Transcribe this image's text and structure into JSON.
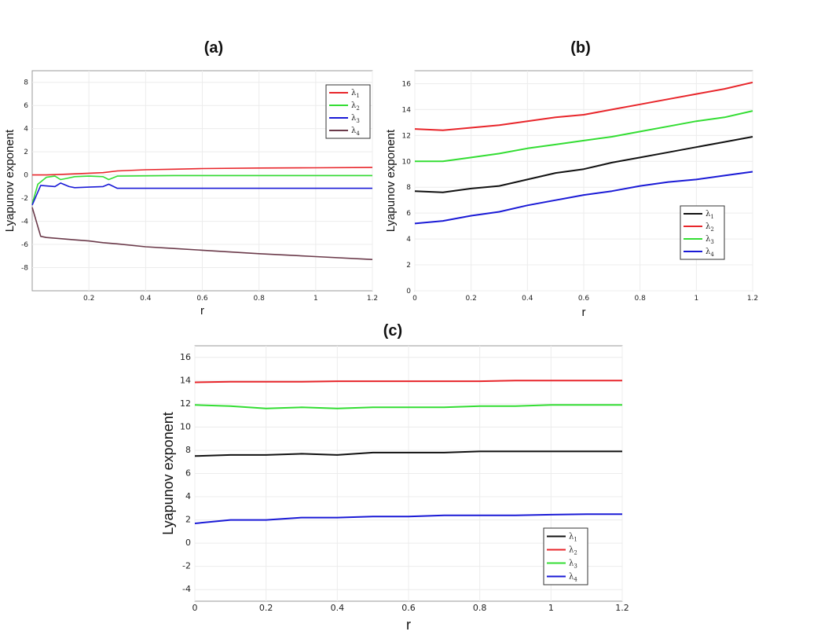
{
  "panels": {
    "a": "(a)",
    "b": "(b)",
    "c": "(c)"
  },
  "chart_data": [
    {
      "type": "line",
      "panel": "(a)",
      "xlabel": "r",
      "ylabel": "Lyapunov exponent",
      "xlim": [
        0,
        1.2
      ],
      "ylim": [
        -10,
        9
      ],
      "xticks": [
        "0.2",
        "0.4",
        "0.6",
        "0.8",
        "1",
        "1.2"
      ],
      "yticks": [
        "-8",
        "-6",
        "-4",
        "-2",
        "0",
        "2",
        "4",
        "6",
        "8"
      ],
      "legend_position": "top-right",
      "grid": true,
      "series": [
        {
          "name": "λ1",
          "color": "#e8262b",
          "x": [
            0,
            0.05,
            0.1,
            0.15,
            0.2,
            0.25,
            0.3,
            0.4,
            0.5,
            0.6,
            0.8,
            1.0,
            1.2
          ],
          "y": [
            0,
            0,
            0.05,
            0.1,
            0.15,
            0.2,
            0.35,
            0.45,
            0.5,
            0.55,
            0.6,
            0.62,
            0.65
          ]
        },
        {
          "name": "λ2",
          "color": "#33dd33",
          "x": [
            0,
            0.02,
            0.05,
            0.08,
            0.1,
            0.12,
            0.15,
            0.2,
            0.25,
            0.27,
            0.3,
            0.5,
            0.8,
            1.0,
            1.2
          ],
          "y": [
            -2.5,
            -0.8,
            -0.2,
            -0.1,
            -0.4,
            -0.3,
            -0.15,
            -0.1,
            -0.15,
            -0.4,
            -0.1,
            -0.05,
            -0.05,
            -0.05,
            -0.05
          ]
        },
        {
          "name": "λ3",
          "color": "#1a1ad6",
          "x": [
            0,
            0.03,
            0.08,
            0.1,
            0.13,
            0.15,
            0.2,
            0.25,
            0.27,
            0.3,
            0.5,
            0.8,
            1.0,
            1.2
          ],
          "y": [
            -2.6,
            -0.9,
            -1.0,
            -0.7,
            -1.0,
            -1.1,
            -1.05,
            -1.0,
            -0.8,
            -1.15,
            -1.15,
            -1.15,
            -1.15,
            -1.15
          ]
        },
        {
          "name": "λ4",
          "color": "#6b3a4a",
          "x": [
            0,
            0.03,
            0.05,
            0.1,
            0.15,
            0.2,
            0.25,
            0.3,
            0.4,
            0.5,
            0.6,
            0.8,
            1.0,
            1.2
          ],
          "y": [
            -2.8,
            -5.3,
            -5.4,
            -5.5,
            -5.6,
            -5.7,
            -5.85,
            -5.95,
            -6.2,
            -6.35,
            -6.5,
            -6.8,
            -7.05,
            -7.3
          ]
        }
      ]
    },
    {
      "type": "line",
      "panel": "(b)",
      "xlabel": "r",
      "ylabel": "Lyapunov exponent",
      "xlim": [
        0,
        1.2
      ],
      "ylim": [
        0,
        17
      ],
      "xticks": [
        "0",
        "0.2",
        "0.4",
        "0.6",
        "0.8",
        "1",
        "1.2"
      ],
      "yticks": [
        "0",
        "2",
        "4",
        "6",
        "8",
        "10",
        "12",
        "14",
        "16"
      ],
      "legend_position": "lower-right",
      "grid": true,
      "series": [
        {
          "name": "λ1",
          "color": "#111111",
          "x": [
            0,
            0.1,
            0.2,
            0.3,
            0.4,
            0.5,
            0.6,
            0.7,
            0.8,
            0.9,
            1.0,
            1.1,
            1.2
          ],
          "y": [
            7.7,
            7.6,
            7.9,
            8.1,
            8.6,
            9.1,
            9.4,
            9.9,
            10.3,
            10.7,
            11.1,
            11.5,
            11.9
          ]
        },
        {
          "name": "λ2",
          "color": "#e8262b",
          "x": [
            0,
            0.1,
            0.2,
            0.3,
            0.4,
            0.5,
            0.6,
            0.7,
            0.8,
            0.9,
            1.0,
            1.1,
            1.2
          ],
          "y": [
            12.5,
            12.4,
            12.6,
            12.8,
            13.1,
            13.4,
            13.6,
            14.0,
            14.4,
            14.8,
            15.2,
            15.6,
            16.1
          ]
        },
        {
          "name": "λ3",
          "color": "#33dd33",
          "x": [
            0,
            0.1,
            0.2,
            0.3,
            0.4,
            0.5,
            0.6,
            0.7,
            0.8,
            0.9,
            1.0,
            1.1,
            1.2
          ],
          "y": [
            10.0,
            10.0,
            10.3,
            10.6,
            11.0,
            11.3,
            11.6,
            11.9,
            12.3,
            12.7,
            13.1,
            13.4,
            13.9
          ]
        },
        {
          "name": "λ4",
          "color": "#1a1ad6",
          "x": [
            0,
            0.1,
            0.2,
            0.3,
            0.4,
            0.5,
            0.6,
            0.7,
            0.8,
            0.9,
            1.0,
            1.1,
            1.2
          ],
          "y": [
            5.2,
            5.4,
            5.8,
            6.1,
            6.6,
            7.0,
            7.4,
            7.7,
            8.1,
            8.4,
            8.6,
            8.9,
            9.2
          ]
        }
      ]
    },
    {
      "type": "line",
      "panel": "(c)",
      "xlabel": "r",
      "ylabel": "Lyapunov exponent",
      "xlim": [
        0,
        1.2
      ],
      "ylim": [
        -5,
        17
      ],
      "xticks": [
        "0",
        "0.2",
        "0.4",
        "0.6",
        "0.8",
        "1",
        "1.2"
      ],
      "yticks": [
        "-4",
        "-2",
        "0",
        "2",
        "4",
        "6",
        "8",
        "10",
        "12",
        "14",
        "16"
      ],
      "legend_position": "lower-right",
      "grid": true,
      "series": [
        {
          "name": "λ1",
          "color": "#111111",
          "x": [
            0,
            0.1,
            0.2,
            0.3,
            0.4,
            0.5,
            0.6,
            0.7,
            0.8,
            0.9,
            1.0,
            1.1,
            1.2
          ],
          "y": [
            7.5,
            7.6,
            7.6,
            7.7,
            7.6,
            7.8,
            7.8,
            7.8,
            7.9,
            7.9,
            7.9,
            7.9,
            7.9
          ]
        },
        {
          "name": "λ2",
          "color": "#e8262b",
          "x": [
            0,
            0.1,
            0.2,
            0.3,
            0.4,
            0.5,
            0.6,
            0.7,
            0.8,
            0.9,
            1.0,
            1.1,
            1.2
          ],
          "y": [
            13.85,
            13.9,
            13.9,
            13.9,
            13.95,
            13.95,
            13.95,
            13.95,
            13.95,
            14.0,
            14.0,
            14.0,
            14.0
          ]
        },
        {
          "name": "λ3",
          "color": "#33dd33",
          "x": [
            0,
            0.1,
            0.2,
            0.3,
            0.4,
            0.5,
            0.6,
            0.7,
            0.8,
            0.9,
            1.0,
            1.1,
            1.2
          ],
          "y": [
            11.9,
            11.8,
            11.6,
            11.7,
            11.6,
            11.7,
            11.7,
            11.7,
            11.8,
            11.8,
            11.9,
            11.9,
            11.9
          ]
        },
        {
          "name": "λ4",
          "color": "#1a1ad6",
          "x": [
            0,
            0.1,
            0.2,
            0.3,
            0.4,
            0.5,
            0.6,
            0.7,
            0.8,
            0.9,
            1.0,
            1.1,
            1.2
          ],
          "y": [
            1.7,
            2.0,
            2.0,
            2.2,
            2.2,
            2.3,
            2.3,
            2.4,
            2.4,
            2.4,
            2.45,
            2.5,
            2.5
          ]
        }
      ]
    }
  ]
}
